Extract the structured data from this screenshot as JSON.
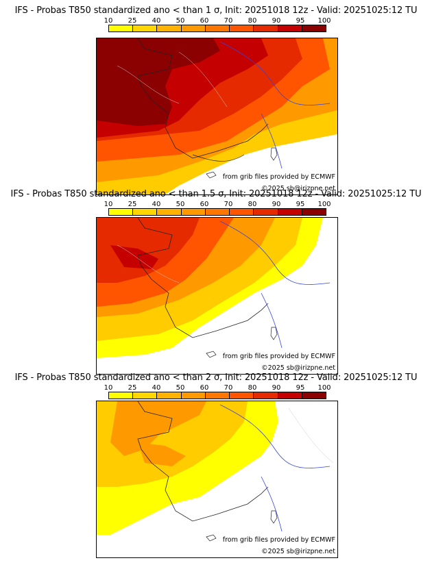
{
  "colorbar": {
    "ticks": [
      "10",
      "25",
      "40",
      "50",
      "60",
      "70",
      "80",
      "90",
      "95",
      "100"
    ],
    "colors": [
      "#ffff00",
      "#ffd700",
      "#ffb300",
      "#ff9900",
      "#ff7700",
      "#ff5500",
      "#e62a00",
      "#c40000",
      "#8b0000"
    ]
  },
  "panels": [
    {
      "title": "IFS - Probas T850  standardized ano < than 1 σ, Init: 20251018 12z - Valid: 20251025:12 TU",
      "credit_source": "from grib files provided by ECMWF",
      "credit_copyright": "©2025 sb@irizpne.net"
    },
    {
      "title": "IFS - Probas T850  standardized ano < than 1.5 σ, Init: 20251018 12z - Valid: 20251025:12 TU",
      "credit_source": "from grib files provided by ECMWF",
      "credit_copyright": "©2025 sb@irizpne.net"
    },
    {
      "title": "IFS - Probas T850  standardized ano < than 2 σ, Init: 20251018 12z - Valid: 20251025:12 TU",
      "credit_source": "from grib files provided by ECMWF",
      "credit_copyright": "©2025 sb@irizpne.net"
    }
  ]
}
